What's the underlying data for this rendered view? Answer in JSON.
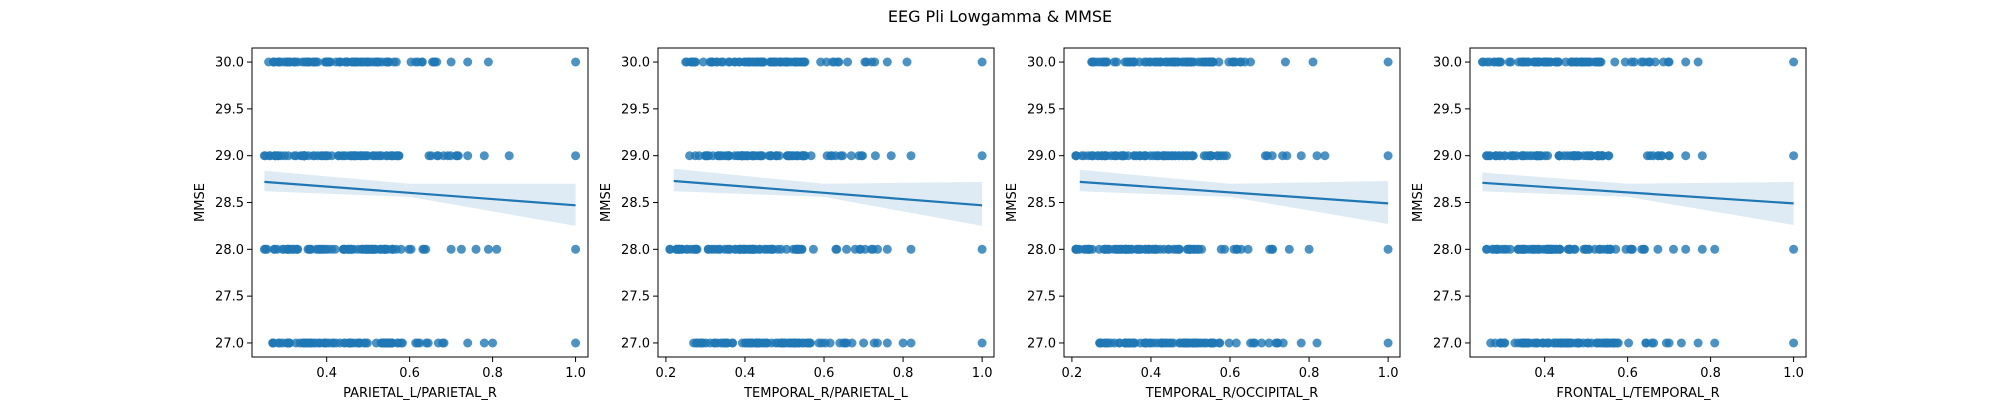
{
  "figure": {
    "title": "EEG Pli Lowgamma & MMSE"
  },
  "colors": {
    "points": "#1f77b4",
    "line": "#1f77b4",
    "band": "#1f77b4"
  },
  "chart_data": [
    {
      "type": "scatter",
      "xlabel": "PARIETAL_L/PARIETAL_R",
      "ylabel": "MMSE",
      "xlim": [
        0.22,
        1.03
      ],
      "ylim": [
        26.85,
        30.15
      ],
      "xticks": [
        0.4,
        0.6,
        0.8,
        1.0
      ],
      "yticks": [
        27.0,
        27.5,
        28.0,
        28.5,
        29.0,
        29.5,
        30.0
      ],
      "point_ranges": [
        {
          "y": 30.0,
          "xmin": 0.26,
          "xmax": 0.79,
          "outliers": [
            0.62,
            0.66,
            0.7,
            0.74,
            0.79,
            1.0
          ]
        },
        {
          "y": 29.0,
          "xmin": 0.25,
          "xmax": 0.84,
          "outliers": [
            0.74,
            0.78,
            0.84,
            1.0
          ]
        },
        {
          "y": 28.0,
          "xmin": 0.25,
          "xmax": 0.81,
          "outliers": [
            0.7,
            0.76,
            0.79,
            0.81,
            1.0
          ]
        },
        {
          "y": 27.0,
          "xmin": 0.27,
          "xmax": 0.8,
          "outliers": [
            0.54,
            0.58,
            0.68,
            0.74,
            0.78,
            0.8,
            1.0
          ]
        }
      ],
      "regression": {
        "x": [
          0.25,
          1.0
        ],
        "y": [
          28.72,
          28.47
        ]
      },
      "ci_band": {
        "x": [
          0.25,
          0.6,
          1.0
        ],
        "lower": [
          28.62,
          28.56,
          28.25
        ],
        "upper": [
          28.84,
          28.7,
          28.7
        ]
      }
    },
    {
      "type": "scatter",
      "xlabel": "TEMPORAL_R/PARIETAL_L",
      "ylabel": "MMSE",
      "xlim": [
        0.18,
        1.03
      ],
      "ylim": [
        26.85,
        30.15
      ],
      "xticks": [
        0.2,
        0.4,
        0.6,
        0.8,
        1.0
      ],
      "yticks": [
        27.0,
        27.5,
        28.0,
        28.5,
        29.0,
        29.5,
        30.0
      ],
      "point_ranges": [
        {
          "y": 30.0,
          "xmin": 0.25,
          "xmax": 0.81,
          "outliers": [
            0.72,
            0.76,
            0.81,
            1.0
          ]
        },
        {
          "y": 29.0,
          "xmin": 0.26,
          "xmax": 0.82,
          "outliers": [
            0.73,
            0.77,
            0.82,
            1.0
          ]
        },
        {
          "y": 28.0,
          "xmin": 0.21,
          "xmax": 0.82,
          "outliers": [
            0.21,
            0.72,
            0.76,
            0.82,
            1.0
          ]
        },
        {
          "y": 27.0,
          "xmin": 0.27,
          "xmax": 0.82,
          "outliers": [
            0.64,
            0.7,
            0.76,
            0.8,
            0.82,
            1.0
          ]
        }
      ],
      "regression": {
        "x": [
          0.22,
          1.0
        ],
        "y": [
          28.73,
          28.47
        ]
      },
      "ci_band": {
        "x": [
          0.22,
          0.6,
          1.0
        ],
        "lower": [
          28.62,
          28.56,
          28.25
        ],
        "upper": [
          28.86,
          28.7,
          28.72
        ]
      }
    },
    {
      "type": "scatter",
      "xlabel": "TEMPORAL_R/OCCIPITAL_R",
      "ylabel": "MMSE",
      "xlim": [
        0.18,
        1.03
      ],
      "ylim": [
        26.85,
        30.15
      ],
      "xticks": [
        0.2,
        0.4,
        0.6,
        0.8,
        1.0
      ],
      "yticks": [
        27.0,
        27.5,
        28.0,
        28.5,
        29.0,
        29.5,
        30.0
      ],
      "point_ranges": [
        {
          "y": 30.0,
          "xmin": 0.25,
          "xmax": 0.81,
          "outliers": [
            0.74,
            0.81,
            1.0
          ]
        },
        {
          "y": 29.0,
          "xmin": 0.21,
          "xmax": 0.84,
          "outliers": [
            0.21,
            0.78,
            0.82,
            0.84,
            1.0
          ]
        },
        {
          "y": 28.0,
          "xmin": 0.21,
          "xmax": 0.8,
          "outliers": [
            0.21,
            0.7,
            0.75,
            0.8,
            1.0
          ]
        },
        {
          "y": 27.0,
          "xmin": 0.27,
          "xmax": 0.82,
          "outliers": [
            0.56,
            0.68,
            0.72,
            0.78,
            0.82,
            1.0
          ]
        }
      ],
      "regression": {
        "x": [
          0.22,
          1.0
        ],
        "y": [
          28.72,
          28.49
        ]
      },
      "ci_band": {
        "x": [
          0.22,
          0.6,
          1.0
        ],
        "lower": [
          28.62,
          28.56,
          28.27
        ],
        "upper": [
          28.85,
          28.7,
          28.73
        ]
      }
    },
    {
      "type": "scatter",
      "xlabel": "FRONTAL_L/TEMPORAL_R",
      "ylabel": "MMSE",
      "xlim": [
        0.22,
        1.03
      ],
      "ylim": [
        26.85,
        30.15
      ],
      "xticks": [
        0.4,
        0.6,
        0.8,
        1.0
      ],
      "yticks": [
        27.0,
        27.5,
        28.0,
        28.5,
        29.0,
        29.5,
        30.0
      ],
      "point_ranges": [
        {
          "y": 30.0,
          "xmin": 0.25,
          "xmax": 0.77,
          "outliers": [
            0.65,
            0.7,
            0.74,
            0.77,
            1.0
          ]
        },
        {
          "y": 29.0,
          "xmin": 0.26,
          "xmax": 0.78,
          "outliers": [
            0.7,
            0.74,
            0.78,
            1.0
          ]
        },
        {
          "y": 28.0,
          "xmin": 0.26,
          "xmax": 0.81,
          "outliers": [
            0.74,
            0.78,
            0.81,
            1.0
          ]
        },
        {
          "y": 27.0,
          "xmin": 0.27,
          "xmax": 0.81,
          "outliers": [
            0.7,
            0.77,
            0.81,
            1.0
          ]
        }
      ],
      "regression": {
        "x": [
          0.25,
          1.0
        ],
        "y": [
          28.71,
          28.49
        ]
      },
      "ci_band": {
        "x": [
          0.25,
          0.6,
          1.0
        ],
        "lower": [
          28.62,
          28.56,
          28.26
        ],
        "upper": [
          28.82,
          28.7,
          28.72
        ]
      }
    }
  ]
}
